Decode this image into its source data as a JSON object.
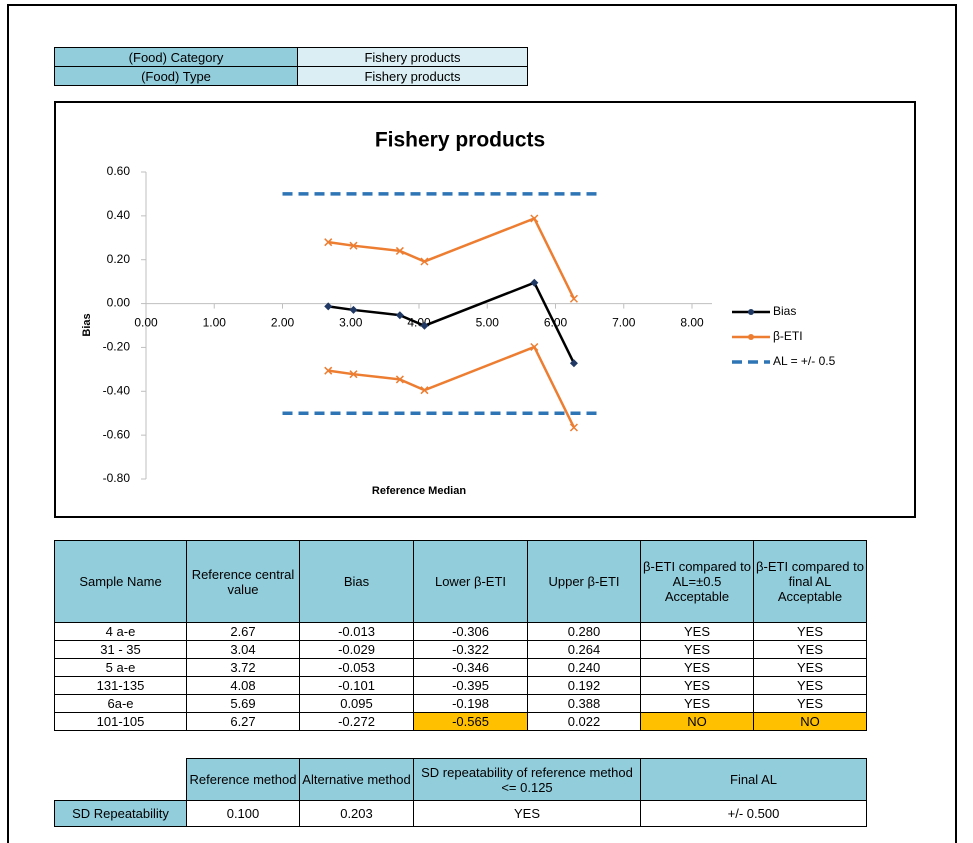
{
  "info_table": {
    "rows": [
      [
        "(Food) Category",
        "Fishery products"
      ],
      [
        "(Food) Type",
        "Fishery products"
      ]
    ]
  },
  "chart_data": {
    "type": "line",
    "title": "Fishery products",
    "x_label": "Reference Median",
    "y_label": "Bias",
    "x": [
      2.67,
      3.04,
      3.72,
      4.08,
      5.69,
      6.27
    ],
    "series": [
      {
        "name": "Bias",
        "color": "#000000",
        "values": [
          -0.013,
          -0.029,
          -0.053,
          -0.101,
          0.095,
          -0.272
        ]
      },
      {
        "name": "β-ETI",
        "color": "#ED7D31",
        "values": [
          0.28,
          0.264,
          0.24,
          0.192,
          0.388,
          0.022
        ],
        "lower": [
          -0.306,
          -0.322,
          -0.346,
          -0.395,
          -0.198,
          -0.565
        ]
      },
      {
        "name": "AL = +/- 0.5",
        "color": "#2E75B6",
        "dashed": true,
        "x": [
          2.0,
          6.65
        ],
        "values": [
          0.5,
          0.5
        ],
        "lower": [
          -0.5,
          -0.5
        ]
      }
    ],
    "xlim": [
      0,
      8
    ],
    "xticks": [
      {
        "value": 0,
        "label": "0.00"
      },
      {
        "value": 1,
        "label": "1.00"
      },
      {
        "value": 2,
        "label": "2.00"
      },
      {
        "value": 3,
        "label": "3.00"
      },
      {
        "value": 4,
        "label": "4.00"
      },
      {
        "value": 5,
        "label": "5.00"
      },
      {
        "value": 6,
        "label": "6.00"
      },
      {
        "value": 7,
        "label": "7.00"
      },
      {
        "value": 8,
        "label": "8.00"
      }
    ],
    "ylim": [
      -0.8,
      0.6
    ],
    "yticks": [
      {
        "value": -0.8,
        "label": "-0.80"
      },
      {
        "value": -0.6,
        "label": "-0.60"
      },
      {
        "value": -0.4,
        "label": "-0.40"
      },
      {
        "value": -0.2,
        "label": "-0.20"
      },
      {
        "value": 0,
        "label": "0.00"
      },
      {
        "value": 0.2,
        "label": "0.20"
      },
      {
        "value": 0.4,
        "label": "0.40"
      },
      {
        "value": 0.6,
        "label": "0.60"
      }
    ],
    "grid": false,
    "legend": "right"
  },
  "results_table": {
    "header": [
      "Sample Name",
      "Reference central value",
      "Bias",
      "Lower β-ETI",
      "Upper β-ETI",
      "β-ETI compared to AL=±0.5 Acceptable",
      "β-ETI compared to final AL Acceptable"
    ],
    "rows": [
      [
        "4 a-e",
        "2.67",
        "-0.013",
        "-0.306",
        "0.280",
        "YES",
        "YES"
      ],
      [
        "31 - 35",
        "3.04",
        "-0.029",
        "-0.322",
        "0.264",
        "YES",
        "YES"
      ],
      [
        "5 a-e",
        "3.72",
        "-0.053",
        "-0.346",
        "0.240",
        "YES",
        "YES"
      ],
      [
        "131-135",
        "4.08",
        "-0.101",
        "-0.395",
        "0.192",
        "YES",
        "YES"
      ],
      [
        "6a-e",
        "5.69",
        "0.095",
        "-0.198",
        "0.388",
        "YES",
        "YES"
      ],
      [
        "101-105",
        "6.27",
        "-0.272",
        "-0.565",
        "0.022",
        "NO",
        "NO"
      ]
    ]
  },
  "repeatability_table": {
    "header": [
      "Reference method",
      "Alternative method",
      "SD repeatability of reference method <= 0.125",
      "Final AL"
    ],
    "row": [
      "SD Repeatability",
      "0.100",
      "0.203",
      "YES",
      "+/- 0.500"
    ]
  }
}
